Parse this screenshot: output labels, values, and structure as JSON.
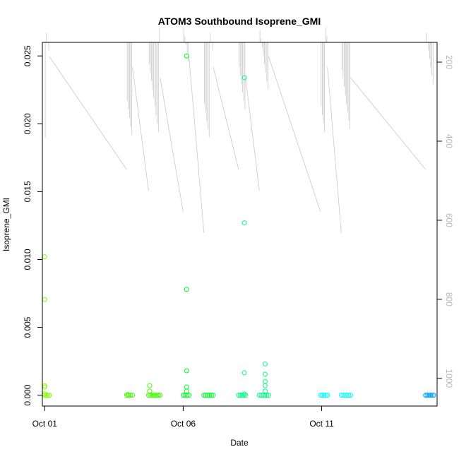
{
  "chart_data": {
    "type": "scatter",
    "title": "ATOM3 Southbound Isoprene_GMI",
    "xlabel": "Date",
    "ylabel": "Isoprene_GMI",
    "xlim": [
      "2017-09-30T22:00",
      "2017-10-15T04:00"
    ],
    "ylim": [
      -0.0008,
      0.026
    ],
    "x_ticks": [
      {
        "value": "2017-10-01T00:00",
        "label": "Oct 01"
      },
      {
        "value": "2017-10-06T00:00",
        "label": "Oct 06"
      },
      {
        "value": "2017-10-11T00:00",
        "label": "Oct 11"
      }
    ],
    "y_ticks": [
      {
        "value": 0.0,
        "label": "0.000"
      },
      {
        "value": 0.005,
        "label": "0.005"
      },
      {
        "value": 0.01,
        "label": "0.010"
      },
      {
        "value": 0.015,
        "label": "0.015"
      },
      {
        "value": 0.02,
        "label": "0.020"
      },
      {
        "value": 0.025,
        "label": "0.025"
      }
    ],
    "y2_lim": [
      1070,
      150
    ],
    "y2_ticks": [
      {
        "value": 200,
        "label": "200"
      },
      {
        "value": 400,
        "label": "400"
      },
      {
        "value": 600,
        "label": "600"
      },
      {
        "value": 800,
        "label": "800"
      },
      {
        "value": 1000,
        "label": "1000"
      }
    ],
    "grid": false,
    "point_colors": [
      "#80ff00",
      "#40ff00",
      "#00ff20",
      "#00ff80",
      "#00ffc0",
      "#00ffff",
      "#00a0ff"
    ],
    "line_color": "#c8c8c8",
    "flights": [
      {
        "start": "2017-10-01T00:00",
        "end": "2017-10-01T04:00",
        "color": "#80ff00",
        "points": [
          [
            "2017-10-01T00:00",
            0.0102
          ],
          [
            "2017-10-01T00:00",
            0.00705
          ],
          [
            "2017-10-01T00:00",
            0.0007
          ],
          [
            "2017-10-01T00:00",
            0.0006
          ],
          [
            "2017-10-01T00:00",
            0.0001
          ]
        ]
      },
      {
        "start": "2017-10-03T23:00",
        "end": "2017-10-04T04:00",
        "color": "#40ff00",
        "points": [
          [
            "2017-10-04T00:00",
            5e-05
          ]
        ]
      },
      {
        "start": "2017-10-04T18:00",
        "end": "2017-10-05T04:00",
        "color": "#40ff00",
        "points": [
          [
            "2017-10-04T19:00",
            0.0007
          ],
          [
            "2017-10-04T19:00",
            0.0003
          ]
        ]
      },
      {
        "start": "2017-10-06T00:00",
        "end": "2017-10-06T05:00",
        "color": "#00ff20",
        "points": [
          [
            "2017-10-06T03:00",
            0.025
          ],
          [
            "2017-10-06T03:00",
            0.0078
          ],
          [
            "2017-10-06T03:00",
            0.0018
          ],
          [
            "2017-10-06T03:00",
            0.0006
          ],
          [
            "2017-10-06T03:00",
            0.0003
          ]
        ]
      },
      {
        "start": "2017-10-06T18:00",
        "end": "2017-10-07T02:00",
        "color": "#00ff20",
        "points": []
      },
      {
        "start": "2017-10-08T00:00",
        "end": "2017-10-08T06:00",
        "color": "#00ff80",
        "points": [
          [
            "2017-10-08T05:00",
            0.0234
          ],
          [
            "2017-10-08T05:00",
            0.0127
          ],
          [
            "2017-10-08T05:00",
            0.00165
          ],
          [
            "2017-10-08T05:00",
            0.0001
          ]
        ]
      },
      {
        "start": "2017-10-08T18:00",
        "end": "2017-10-09T02:00",
        "color": "#00ff80",
        "points": [
          [
            "2017-10-08T23:00",
            0.0023
          ],
          [
            "2017-10-08T23:00",
            0.00155
          ],
          [
            "2017-10-08T23:00",
            0.001
          ],
          [
            "2017-10-08T23:00",
            0.0007
          ],
          [
            "2017-10-08T23:00",
            0.0003
          ]
        ]
      },
      {
        "start": "2017-10-10T23:00",
        "end": "2017-10-11T05:00",
        "color": "#00ffff",
        "points": []
      },
      {
        "start": "2017-10-11T17:00",
        "end": "2017-10-12T01:00",
        "color": "#00ffff",
        "points": []
      },
      {
        "start": "2017-10-14T18:00",
        "end": "2017-10-15T01:00",
        "color": "#00a0ff",
        "points": []
      }
    ]
  }
}
